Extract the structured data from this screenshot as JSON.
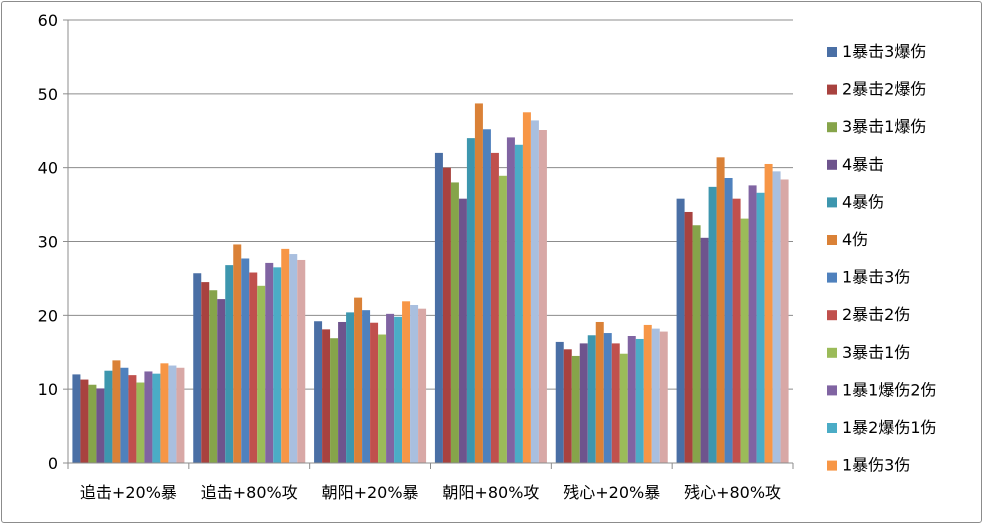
{
  "chart_data": {
    "type": "bar",
    "title": "",
    "xlabel": "",
    "ylabel": "",
    "ylim": [
      0,
      60
    ],
    "yticks": [
      0,
      10,
      20,
      30,
      40,
      50,
      60
    ],
    "grid": true,
    "legend_position": "right",
    "categories": [
      "追击+20%暴",
      "追击+80%攻",
      "朝阳+20%暴",
      "朝阳+80%攻",
      "残心+20%暴",
      "残心+80%攻"
    ],
    "series": [
      {
        "name": "1暴击3爆伤",
        "color": "#4a6fa5",
        "values": [
          12.0,
          25.7,
          19.2,
          42.0,
          16.4,
          35.8
        ]
      },
      {
        "name": "2暴击2爆伤",
        "color": "#a8423f",
        "values": [
          11.3,
          24.5,
          18.1,
          40.0,
          15.4,
          34.0
        ]
      },
      {
        "name": "3暴击1爆伤",
        "color": "#86a44a",
        "values": [
          10.6,
          23.4,
          16.9,
          38.0,
          14.5,
          32.2
        ]
      },
      {
        "name": "4暴击",
        "color": "#6e548d",
        "values": [
          10.1,
          22.2,
          19.1,
          35.8,
          16.2,
          30.5
        ]
      },
      {
        "name": "4暴伤",
        "color": "#3d96ae",
        "values": [
          12.5,
          26.8,
          20.4,
          44.0,
          17.3,
          37.4
        ]
      },
      {
        "name": "4伤",
        "color": "#da8137",
        "values": [
          13.9,
          29.6,
          22.4,
          48.7,
          19.1,
          41.4
        ]
      },
      {
        "name": "1暴击3伤",
        "color": "#4f81bd",
        "values": [
          12.9,
          27.7,
          20.7,
          45.2,
          17.6,
          38.6
        ]
      },
      {
        "name": "2暴击2伤",
        "color": "#c0504d",
        "values": [
          11.9,
          25.8,
          19.0,
          42.0,
          16.2,
          35.8
        ]
      },
      {
        "name": "3暴击1伤",
        "color": "#9bbb59",
        "values": [
          10.9,
          24.0,
          17.4,
          38.9,
          14.8,
          33.1
        ]
      },
      {
        "name": "1暴1爆伤2伤",
        "color": "#8064a2",
        "values": [
          12.4,
          27.1,
          20.2,
          44.1,
          17.2,
          37.6
        ]
      },
      {
        "name": "1暴2爆伤1伤",
        "color": "#4bacc6",
        "values": [
          12.1,
          26.5,
          19.8,
          43.1,
          16.8,
          36.6
        ]
      },
      {
        "name": "1暴伤3伤",
        "color": "#f79646",
        "values": [
          13.5,
          29.0,
          21.9,
          47.5,
          18.7,
          40.5
        ]
      },
      {
        "name": "",
        "color": "#a9bfdf",
        "values": [
          13.2,
          28.3,
          21.4,
          46.4,
          18.2,
          39.5
        ]
      },
      {
        "name": "",
        "color": "#d8a8a6",
        "values": [
          12.9,
          27.5,
          20.9,
          45.1,
          17.8,
          38.4
        ]
      }
    ]
  }
}
